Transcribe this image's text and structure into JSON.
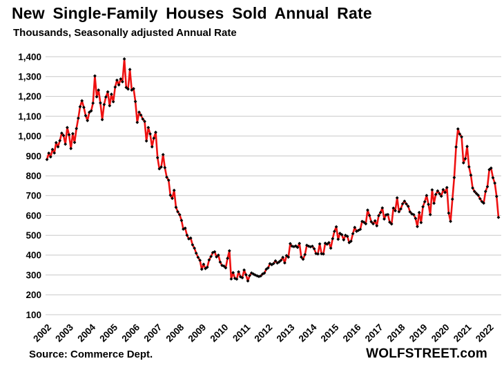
{
  "header": {
    "title": "New Single-Family Houses Sold Annual Rate",
    "subtitle": "Thousands, Seasonally adjusted Annual Rate"
  },
  "footer": {
    "source": "Source: Commerce Dept.",
    "branding": "WOLFSTREET.com"
  },
  "chart_data": {
    "type": "line",
    "title": "New Single-Family Houses Sold Annual Rate",
    "subtitle": "Thousands, Seasonally adjusted Annual Rate",
    "ylabel": "Thousands, Seasonally adjusted Annual Rate",
    "xlabel": "",
    "ylim": [
      100,
      1400
    ],
    "y_ticks": [
      100,
      200,
      300,
      400,
      500,
      600,
      700,
      800,
      900,
      1000,
      1100,
      1200,
      1300,
      1400
    ],
    "x_tick_labels": [
      "2002",
      "2003",
      "2004",
      "2005",
      "2006",
      "2007",
      "2008",
      "2009",
      "2010",
      "2011",
      "2012",
      "2013",
      "2014",
      "2015",
      "2016",
      "2017",
      "2018",
      "2019",
      "2020",
      "2021",
      "2022"
    ],
    "x_range": [
      "2002-01",
      "2022-06"
    ],
    "grid": "horizontal",
    "grid_color": "#c8c8c8",
    "line_color": "#ee1111",
    "marker_color": "#000000",
    "legend": "none",
    "series": [
      {
        "name": "New single-family houses sold, seasonally adjusted annual rate (thousands)",
        "frequency": "monthly",
        "start_month": "2002-01",
        "values": [
          882,
          914,
          895,
          933,
          915,
          967,
          946,
          977,
          1015,
          1003,
          959,
          1043,
          1007,
          937,
          1012,
          968,
          1038,
          1090,
          1148,
          1178,
          1145,
          1103,
          1078,
          1120,
          1127,
          1166,
          1303,
          1198,
          1232,
          1167,
          1083,
          1159,
          1197,
          1223,
          1153,
          1211,
          1173,
          1247,
          1282,
          1258,
          1288,
          1274,
          1389,
          1245,
          1237,
          1336,
          1232,
          1239,
          1174,
          1069,
          1121,
          1106,
          1086,
          1074,
          975,
          1043,
          1011,
          946,
          989,
          1019,
          891,
          835,
          844,
          907,
          841,
          793,
          778,
          702,
          686,
          727,
          641,
          619,
          604,
          575,
          531,
          536,
          500,
          482,
          486,
          452,
          435,
          410,
          389,
          374,
          329,
          354,
          332,
          339,
          376,
          393,
          413,
          417,
          391,
          400,
          365,
          348,
          345,
          336,
          384,
          422,
          280,
          312,
          283,
          279,
          316,
          291,
          286,
          325,
          301,
          270,
          297,
          310,
          305,
          300,
          296,
          292,
          295,
          305,
          310,
          329,
          336,
          357,
          352,
          358,
          371,
          360,
          366,
          374,
          389,
          361,
          398,
          390,
          458,
          445,
          443,
          446,
          439,
          459,
          390,
          379,
          403,
          450,
          445,
          442,
          445,
          432,
          408,
          406,
          457,
          407,
          406,
          460,
          455,
          463,
          435,
          483,
          520,
          543,
          480,
          510,
          503,
          477,
          500,
          495,
          463,
          470,
          508,
          540,
          520,
          525,
          530,
          570,
          566,
          558,
          627,
          600,
          568,
          558,
          573,
          548,
          599,
          615,
          638,
          582,
          603,
          605,
          566,
          557,
          637,
          624,
          689,
          619,
          633,
          659,
          672,
          658,
          646,
          618,
          608,
          604,
          585,
          544,
          615,
          564,
          644,
          669,
          701,
          656,
          604,
          729,
          661,
          706,
          724,
          710,
          697,
          730,
          716,
          741,
          612,
          570,
          682,
          791,
          945,
          1036,
          1010,
          996,
          865,
          886,
          948,
          845,
          803,
          738,
          721,
          711,
          702,
          684,
          670,
          662,
          721,
          745,
          831,
          839,
          790,
          763,
          696,
          590
        ]
      }
    ]
  }
}
